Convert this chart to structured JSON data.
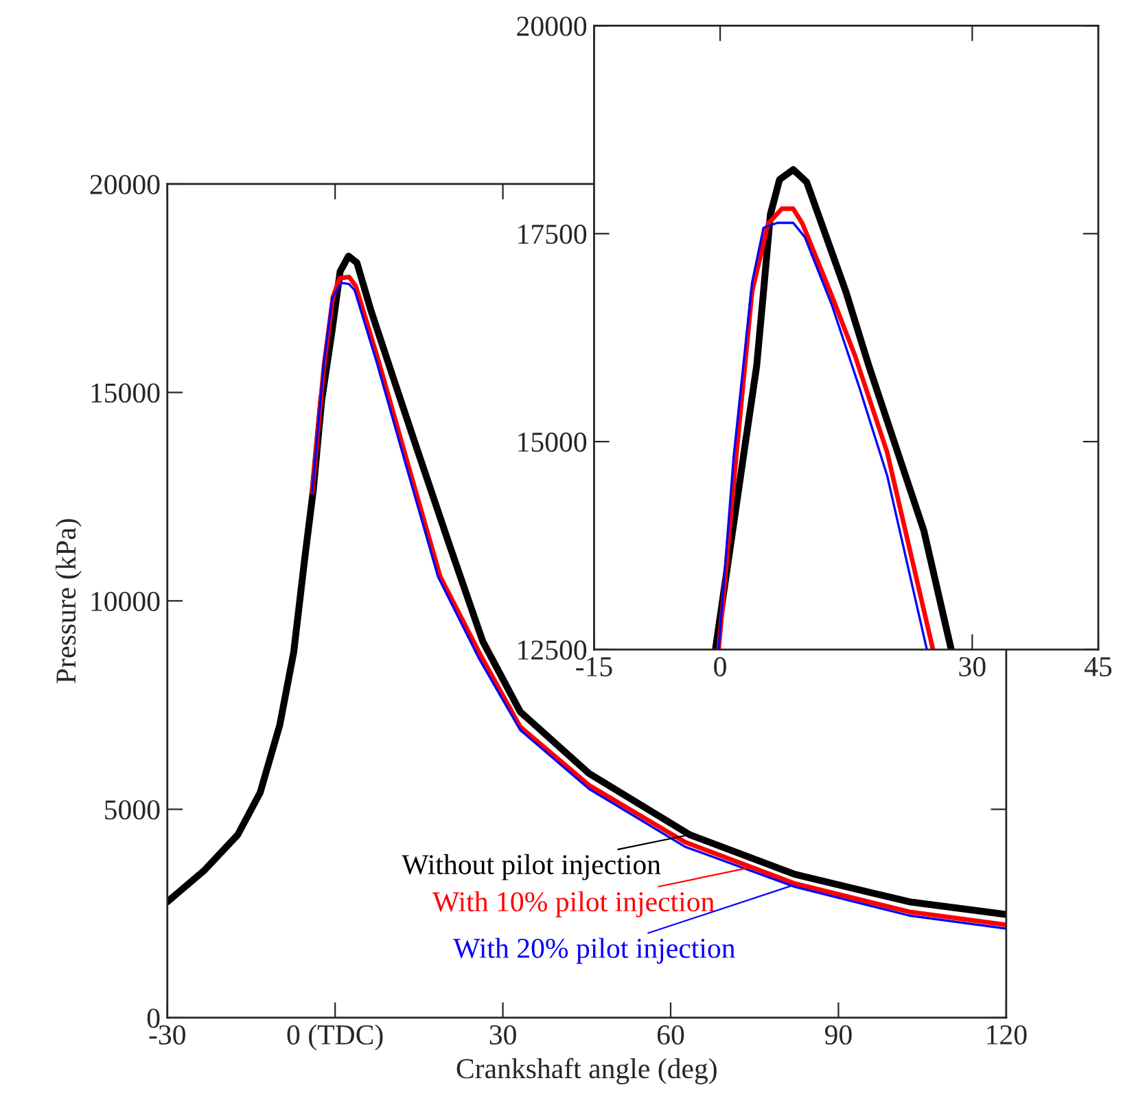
{
  "chart_data": [
    {
      "type": "line",
      "xlabel": "Crankshaft angle (deg)",
      "ylabel": "Pressure (kPa)",
      "xlim": [
        -30,
        120
      ],
      "xticks": [
        -30,
        {
          "value": 0,
          "label": "0 (TDC)"
        },
        30,
        60,
        90,
        120
      ],
      "ylim": [
        0,
        20000
      ],
      "yticks": [
        0,
        5000,
        10000,
        15000,
        20000
      ],
      "series": [
        {
          "color": "#000000",
          "x": [
            -30,
            -23.5,
            -17.4,
            -13.4,
            -9.9,
            -7.4,
            -5.4,
            -3.9,
            -2.4,
            -0.6,
            0.9,
            2.4,
            3.9,
            6.4,
            10.4,
            14.4,
            20.5,
            26.4,
            33.1,
            45.4,
            63.4,
            82.2,
            102.7,
            119.9
          ],
          "values": [
            2780,
            3520,
            4390,
            5400,
            7020,
            8770,
            11050,
            12660,
            14810,
            16430,
            17900,
            18270,
            18110,
            16970,
            15350,
            13740,
            11320,
            9030,
            7340,
            5860,
            4390,
            3440,
            2780,
            2480
          ]
        },
        {
          "color": "#ff0000",
          "x": [
            -4.1,
            -2.0,
            -0.4,
            0.8,
            2.5,
            3.7,
            7.8,
            12.7,
            18.8,
            26.0,
            33.1,
            45.4,
            62.6,
            82.2,
            102.7,
            119.9
          ],
          "values": [
            12610,
            15630,
            17280,
            17740,
            17770,
            17550,
            15740,
            13430,
            10580,
            8700,
            6980,
            5580,
            4210,
            3220,
            2540,
            2230
          ]
        },
        {
          "color": "#0000ff",
          "x": [
            -4.1,
            -2.0,
            -0.5,
            1.2,
            2.5,
            3.5,
            7.4,
            12.3,
            18.4,
            25.8,
            33.1,
            45.4,
            62.6,
            82.2,
            102.7,
            119.9
          ],
          "values": [
            12610,
            15740,
            17280,
            17630,
            17600,
            17450,
            15740,
            13430,
            10580,
            8600,
            6900,
            5490,
            4100,
            3140,
            2450,
            2140
          ]
        }
      ],
      "annotations": [
        {
          "text": "Without pilot injection",
          "x": 63.4,
          "y": 4390
        },
        {
          "text": "With 10% pilot injection",
          "x": 73.7,
          "y": 3590
        },
        {
          "text": "With 20% pilot injection",
          "x": 81.5,
          "y": 3160
        }
      ]
    },
    {
      "type": "line",
      "xlim": [
        -15,
        45
      ],
      "xticks": [
        -15,
        0,
        30,
        45
      ],
      "ylim": [
        12500,
        20000
      ],
      "yticks": [
        12500,
        15000,
        17500,
        20000
      ],
      "series": [
        {
          "color": "#000000",
          "x": [
            -0.56,
            3.0,
            4.35,
            5.16,
            5.98,
            7.07,
            8.7,
            10.3,
            12.25,
            14.97,
            17.7,
            20.97,
            24.24,
            27.5
          ],
          "values": [
            12500,
            14980,
            15910,
            16800,
            17730,
            18150,
            18270,
            18120,
            17570,
            16800,
            15910,
            14920,
            13930,
            12500
          ]
        },
        {
          "color": "#ff0000",
          "x": [
            -0.18,
            1.9,
            3.8,
            5.7,
            7.34,
            8.7,
            9.8,
            13.34,
            16.06,
            19.88,
            25.33
          ],
          "values": [
            12500,
            14810,
            16800,
            17620,
            17800,
            17800,
            17620,
            16740,
            16030,
            14870,
            12500
          ]
        },
        {
          "color": "#0000ff",
          "x": [
            -0.18,
            1.6,
            3.8,
            5.16,
            6.8,
            8.7,
            10.07,
            13.34,
            16.6,
            19.88,
            24.6
          ],
          "values": [
            12500,
            14810,
            16910,
            17570,
            17630,
            17630,
            17460,
            16630,
            15640,
            14590,
            12500
          ]
        }
      ]
    }
  ]
}
